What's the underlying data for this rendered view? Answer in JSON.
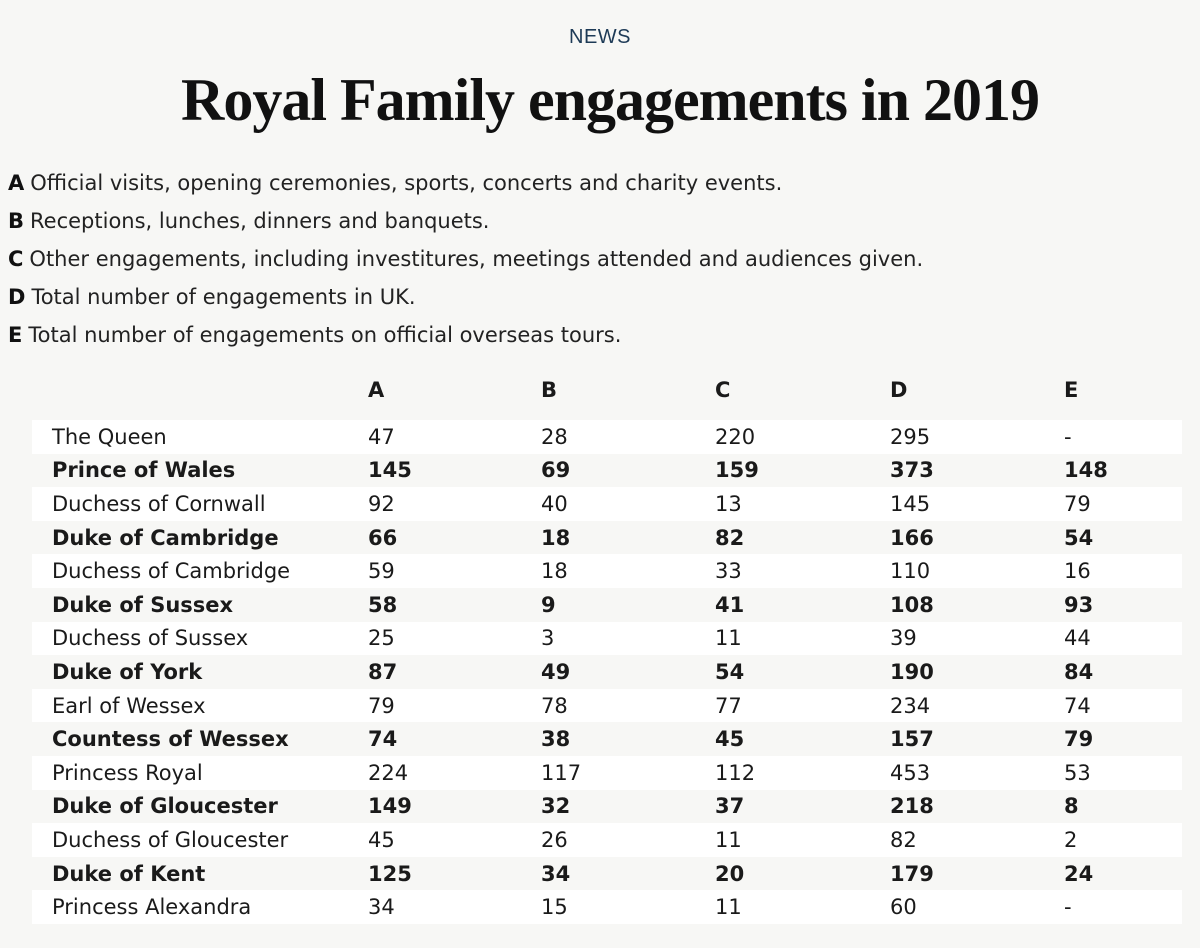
{
  "section_tag": "NEWS",
  "title": "Royal Family engagements in 2019",
  "legend": [
    {
      "key": "A",
      "text": "Official visits, opening ceremonies, sports, concerts and charity events."
    },
    {
      "key": "B",
      "text": "Receptions, lunches, dinners and banquets."
    },
    {
      "key": "C",
      "text": "Other engagements, including investitures, meetings attended and audiences given."
    },
    {
      "key": "D",
      "text": "Total number of engagements in UK."
    },
    {
      "key": "E",
      "text": "Total number of engagements on official overseas tours."
    }
  ],
  "table": {
    "headers": [
      "",
      "A",
      "B",
      "C",
      "D",
      "E"
    ],
    "rows": [
      {
        "name": "The Queen",
        "bold": false,
        "values": [
          "47",
          "28",
          "220",
          "295",
          "-"
        ]
      },
      {
        "name": "Prince of Wales",
        "bold": true,
        "values": [
          "145",
          "69",
          "159",
          "373",
          "148"
        ]
      },
      {
        "name": "Duchess of Cornwall",
        "bold": false,
        "values": [
          "92",
          "40",
          "13",
          "145",
          "79"
        ]
      },
      {
        "name": "Duke of Cambridge",
        "bold": true,
        "values": [
          "66",
          "18",
          "82",
          "166",
          "54"
        ]
      },
      {
        "name": "Duchess of Cambridge",
        "bold": false,
        "values": [
          "59",
          "18",
          "33",
          "110",
          "16"
        ]
      },
      {
        "name": "Duke of Sussex",
        "bold": true,
        "values": [
          "58",
          "9",
          "41",
          "108",
          "93"
        ]
      },
      {
        "name": "Duchess of Sussex",
        "bold": false,
        "values": [
          "25",
          "3",
          "11",
          "39",
          "44"
        ]
      },
      {
        "name": "Duke of York",
        "bold": true,
        "values": [
          "87",
          "49",
          "54",
          "190",
          "84"
        ]
      },
      {
        "name": "Earl of Wessex",
        "bold": false,
        "values": [
          "79",
          "78",
          "77",
          "234",
          "74"
        ]
      },
      {
        "name": "Countess of Wessex",
        "bold": true,
        "values": [
          "74",
          "38",
          "45",
          "157",
          "79"
        ]
      },
      {
        "name": "Princess Royal",
        "bold": false,
        "values": [
          "224",
          "117",
          "112",
          "453",
          "53"
        ]
      },
      {
        "name": "Duke of Gloucester",
        "bold": true,
        "values": [
          "149",
          "32",
          "37",
          "218",
          "8"
        ]
      },
      {
        "name": "Duchess of Gloucester",
        "bold": false,
        "values": [
          "45",
          "26",
          "11",
          "82",
          "2"
        ]
      },
      {
        "name": "Duke of Kent",
        "bold": true,
        "values": [
          "125",
          "34",
          "20",
          "179",
          "24"
        ]
      },
      {
        "name": "Princess Alexandra",
        "bold": false,
        "values": [
          "34",
          "15",
          "11",
          "60",
          "-"
        ]
      }
    ]
  }
}
